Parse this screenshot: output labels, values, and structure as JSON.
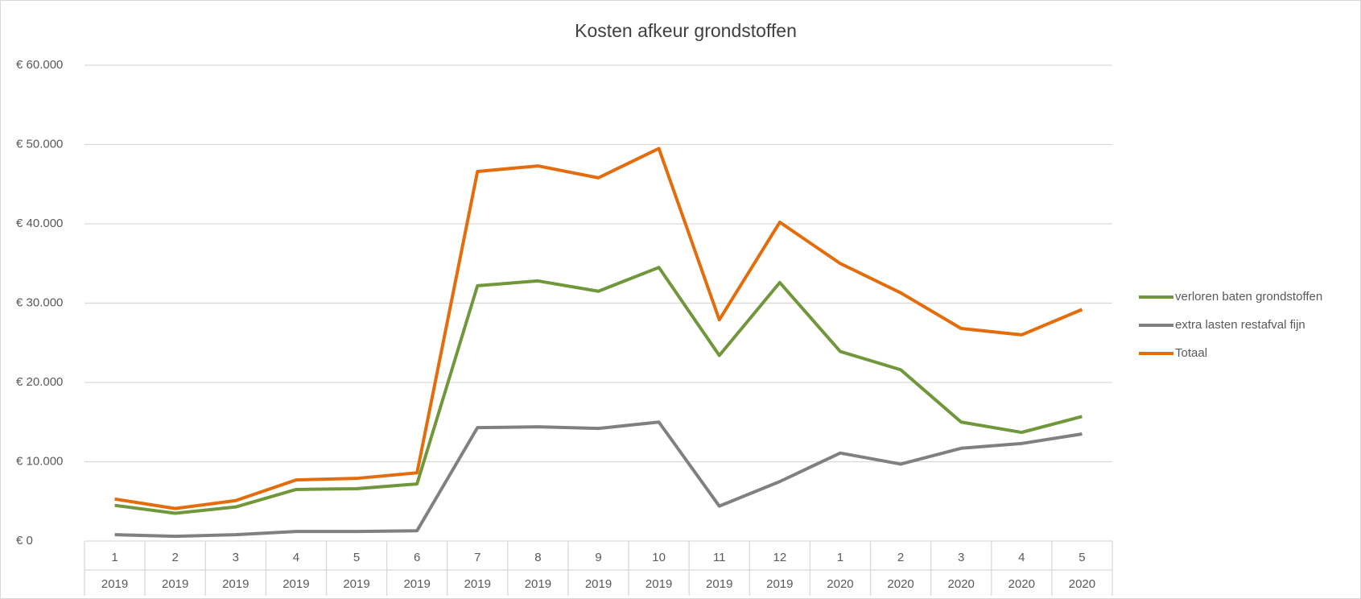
{
  "chart_data": {
    "type": "line",
    "title": "Kosten afkeur grondstoffen",
    "categories": [
      "1",
      "2",
      "3",
      "4",
      "5",
      "6",
      "7",
      "8",
      "9",
      "10",
      "11",
      "12",
      "1",
      "2",
      "3",
      "4",
      "5"
    ],
    "years": [
      "2019",
      "2019",
      "2019",
      "2019",
      "2019",
      "2019",
      "2019",
      "2019",
      "2019",
      "2019",
      "2019",
      "2019",
      "2020",
      "2020",
      "2020",
      "2020",
      "2020"
    ],
    "series": [
      {
        "name": "verloren baten grondstoffen",
        "color": "#70973a",
        "values": [
          4500,
          3500,
          4300,
          6500,
          6600,
          7200,
          32200,
          32800,
          31500,
          34500,
          23400,
          32600,
          23900,
          21600,
          15000,
          13700,
          15700
        ]
      },
      {
        "name": "extra lasten restafval fijn",
        "color": "#808080",
        "values": [
          800,
          600,
          800,
          1200,
          1200,
          1300,
          14300,
          14400,
          14200,
          15000,
          4400,
          7500,
          11100,
          9700,
          11700,
          12300,
          13500
        ]
      },
      {
        "name": "Totaal",
        "color": "#e46c0a",
        "values": [
          5300,
          4100,
          5100,
          7700,
          7900,
          8600,
          46600,
          47300,
          45800,
          49500,
          27900,
          40200,
          35000,
          31300,
          26800,
          26000,
          29200
        ]
      }
    ],
    "ylim": [
      0,
      60000
    ],
    "yticks": [
      {
        "value": 0,
        "label": "€ 0"
      },
      {
        "value": 10000,
        "label": "€ 10.000"
      },
      {
        "value": 20000,
        "label": "€ 20.000"
      },
      {
        "value": 30000,
        "label": "€ 30.000"
      },
      {
        "value": 40000,
        "label": "€ 40.000"
      },
      {
        "value": 50000,
        "label": "€ 50.000"
      },
      {
        "value": 60000,
        "label": "€ 60.000"
      }
    ],
    "grid": true,
    "legend": "right"
  }
}
